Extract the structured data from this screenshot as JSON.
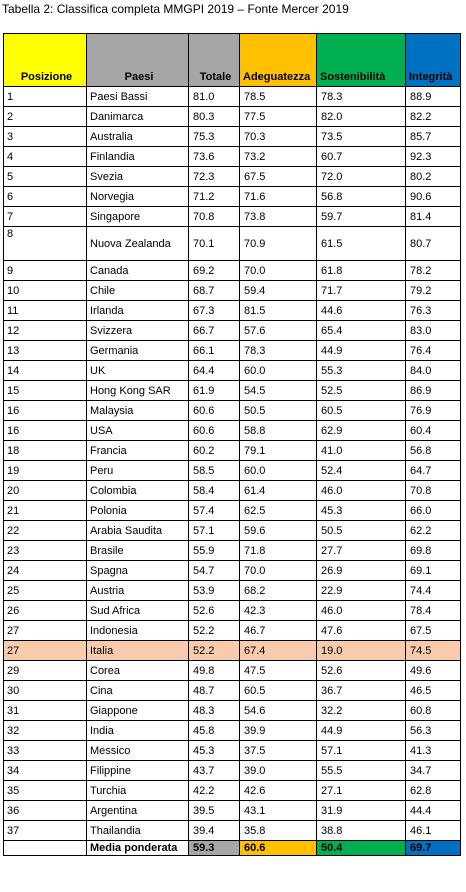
{
  "caption": "Tabella 2: Classifica completa MMGPI 2019 – Fonte Mercer 2019",
  "columns": {
    "posizione": "Posizione",
    "paesi": "Paesi",
    "totale": "Totale",
    "adeguatezza": "Adeguatezza",
    "sostenibilita": "Sostenibilità",
    "integrita": "Integrità"
  },
  "colors": {
    "posizione": "#ffff00",
    "paesi": "#a6a6a6",
    "totale": "#a6a6a6",
    "adeguatezza": "#ffc000",
    "sostenibilita": "#00b050",
    "integrita": "#0070c0",
    "highlight_row": "#f8cbad"
  },
  "rows": [
    {
      "pos": "1",
      "country": "Paesi Bassi",
      "tot": "81.0",
      "adeg": "78.5",
      "sost": "78.3",
      "int": "88.9"
    },
    {
      "pos": "2",
      "country": "Danimarca",
      "tot": "80.3",
      "adeg": "77.5",
      "sost": "82.0",
      "int": "82.2"
    },
    {
      "pos": "3",
      "country": "Australia",
      "tot": "75.3",
      "adeg": "70.3",
      "sost": "73.5",
      "int": "85.7"
    },
    {
      "pos": "4",
      "country": "Finlandia",
      "tot": "73.6",
      "adeg": "73.2",
      "sost": "60.7",
      "int": "92.3"
    },
    {
      "pos": "5",
      "country": "Svezia",
      "tot": "72.3",
      "adeg": "67.5",
      "sost": "72.0",
      "int": "80.2"
    },
    {
      "pos": "6",
      "country": "Norvegia",
      "tot": "71.2",
      "adeg": "71.6",
      "sost": "56.8",
      "int": "90.6"
    },
    {
      "pos": "7",
      "country": "Singapore",
      "tot": "70.8",
      "adeg": "73.8",
      "sost": "59.7",
      "int": "81.4"
    },
    {
      "pos": "8",
      "country": "Nuova Zealanda",
      "tot": "70.1",
      "adeg": "70.9",
      "sost": "61.5",
      "int": "80.7"
    },
    {
      "pos": "9",
      "country": "Canada",
      "tot": "69.2",
      "adeg": "70.0",
      "sost": "61.8",
      "int": "78.2"
    },
    {
      "pos": "10",
      "country": "Chile",
      "tot": "68.7",
      "adeg": "59.4",
      "sost": "71.7",
      "int": "79.2"
    },
    {
      "pos": "11",
      "country": "Irlanda",
      "tot": "67.3",
      "adeg": "81.5",
      "sost": "44.6",
      "int": "76.3"
    },
    {
      "pos": "12",
      "country": "Svizzera",
      "tot": "66.7",
      "adeg": "57.6",
      "sost": "65.4",
      "int": "83.0"
    },
    {
      "pos": "13",
      "country": "Germania",
      "tot": "66.1",
      "adeg": "78.3",
      "sost": "44.9",
      "int": "76.4"
    },
    {
      "pos": "14",
      "country": "UK",
      "tot": "64.4",
      "adeg": "60.0",
      "sost": "55.3",
      "int": "84.0"
    },
    {
      "pos": "15",
      "country": "Hong Kong SAR",
      "tot": "61.9",
      "adeg": "54.5",
      "sost": "52.5",
      "int": "86.9"
    },
    {
      "pos": "16",
      "country": "Malaysia",
      "tot": "60.6",
      "adeg": "50.5",
      "sost": "60.5",
      "int": "76.9"
    },
    {
      "pos": "16",
      "country": "USA",
      "tot": "60.6",
      "adeg": "58.8",
      "sost": "62.9",
      "int": "60.4"
    },
    {
      "pos": "18",
      "country": "Francia",
      "tot": "60.2",
      "adeg": "79.1",
      "sost": "41.0",
      "int": "56.8"
    },
    {
      "pos": "19",
      "country": "Peru",
      "tot": "58.5",
      "adeg": "60.0",
      "sost": "52.4",
      "int": "64.7"
    },
    {
      "pos": "20",
      "country": "Colombia",
      "tot": "58.4",
      "adeg": "61.4",
      "sost": "46.0",
      "int": "70.8"
    },
    {
      "pos": "21",
      "country": "Polonia",
      "tot": "57.4",
      "adeg": "62.5",
      "sost": "45.3",
      "int": "66.0"
    },
    {
      "pos": "22",
      "country": "Arabia Saudita",
      "tot": "57.1",
      "adeg": "59.6",
      "sost": "50.5",
      "int": "62.2"
    },
    {
      "pos": "23",
      "country": "Brasile",
      "tot": "55.9",
      "adeg": "71.8",
      "sost": "27.7",
      "int": "69.8"
    },
    {
      "pos": "24",
      "country": "Spagna",
      "tot": "54.7",
      "adeg": "70.0",
      "sost": "26.9",
      "int": "69.1"
    },
    {
      "pos": "25",
      "country": "Austria",
      "tot": "53.9",
      "adeg": "68.2",
      "sost": "22.9",
      "int": "74.4"
    },
    {
      "pos": "26",
      "country": "Sud Africa",
      "tot": "52.6",
      "adeg": "42.3",
      "sost": "46.0",
      "int": "78.4"
    },
    {
      "pos": "27",
      "country": "Indonesia",
      "tot": "52.2",
      "adeg": "46.7",
      "sost": "47.6",
      "int": "67.5"
    },
    {
      "pos": "27",
      "country": "Italia",
      "tot": "52.2",
      "adeg": "67.4",
      "sost": "19.0",
      "int": "74.5"
    },
    {
      "pos": "29",
      "country": "Corea",
      "tot": "49.8",
      "adeg": "47.5",
      "sost": "52.6",
      "int": "49.6"
    },
    {
      "pos": "30",
      "country": "Cina",
      "tot": "48.7",
      "adeg": "60.5",
      "sost": "36.7",
      "int": "46.5"
    },
    {
      "pos": "31",
      "country": "Giappone",
      "tot": "48.3",
      "adeg": "54.6",
      "sost": "32.2",
      "int": "60.8"
    },
    {
      "pos": "32",
      "country": "India",
      "tot": "45.8",
      "adeg": "39.9",
      "sost": "44.9",
      "int": "56.3"
    },
    {
      "pos": "33",
      "country": "Messico",
      "tot": "45.3",
      "adeg": "37.5",
      "sost": "57.1",
      "int": "41.3"
    },
    {
      "pos": "34",
      "country": "Filippine",
      "tot": "43.7",
      "adeg": "39.0",
      "sost": "55.5",
      "int": "34.7"
    },
    {
      "pos": "35",
      "country": "Turchia",
      "tot": "42.2",
      "adeg": "42.6",
      "sost": "27.1",
      "int": "62.8"
    },
    {
      "pos": "36",
      "country": "Argentina",
      "tot": "39.5",
      "adeg": "43.1",
      "sost": "31.9",
      "int": "44.4"
    },
    {
      "pos": "37",
      "country": "Thailandia",
      "tot": "39.4",
      "adeg": "35.8",
      "sost": "38.8",
      "int": "46.1"
    }
  ],
  "average": {
    "label": "Media ponderata",
    "tot": "59.3",
    "adeg": "60.6",
    "sost": "50.4",
    "int": "69.7"
  }
}
